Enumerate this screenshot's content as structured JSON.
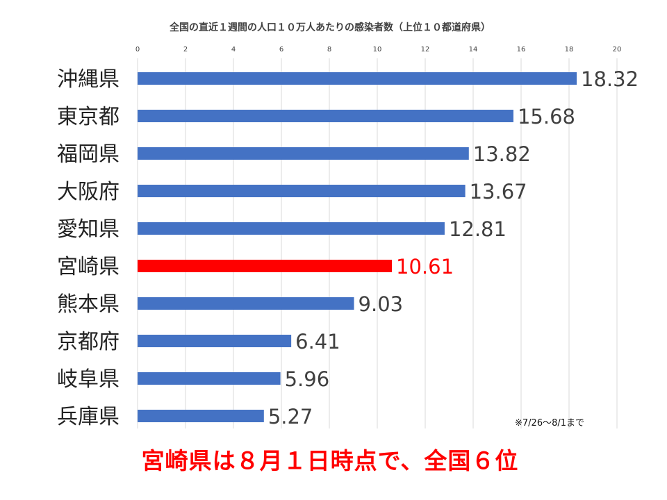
{
  "chart_data": {
    "type": "bar",
    "orientation": "horizontal",
    "title": "全国の直近１週間の人口１０万人あたりの感染者数（上位１０都道府県）",
    "xlim": [
      0,
      20
    ],
    "xticks": [
      0,
      2,
      4,
      6,
      8,
      10,
      12,
      14,
      16,
      18,
      20
    ],
    "grid": true,
    "categories": [
      "沖縄県",
      "東京都",
      "福岡県",
      "大阪府",
      "愛知県",
      "宮崎県",
      "熊本県",
      "京都府",
      "岐阜県",
      "兵庫県"
    ],
    "values": [
      18.32,
      15.68,
      13.82,
      13.67,
      12.81,
      10.61,
      9.03,
      6.41,
      5.96,
      5.27
    ],
    "value_labels": [
      "18.32",
      "15.68",
      "13.82",
      "13.67",
      "12.81",
      "10.61",
      "9.03",
      "6.41",
      "5.96",
      "5.27"
    ],
    "highlight_category": "宮崎県",
    "colors": {
      "bar": "#4472c4",
      "highlight": "#ff0000",
      "grid": "#d9d9d9",
      "text": "#404040"
    }
  },
  "footnote": "※7/26〜8/1まで",
  "headline": "宮崎県は８月１日時点で、全国６位"
}
